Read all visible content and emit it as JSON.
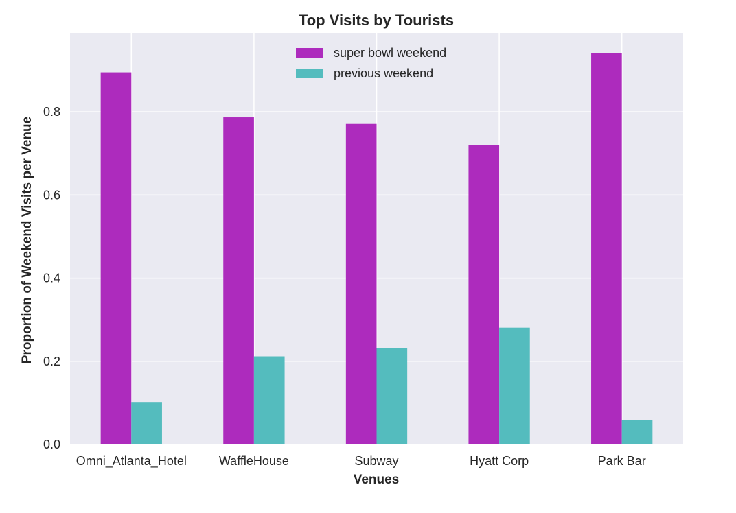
{
  "chart_data": {
    "type": "bar",
    "title": "Top Visits by Tourists",
    "xlabel": "Venues",
    "ylabel": "Proportion of Weekend Visits per Venue",
    "categories": [
      "Omni_Atlanta_Hotel",
      "WaffleHouse",
      "Subway",
      "Hyatt Corp",
      "Park Bar"
    ],
    "series": [
      {
        "name": "super bowl weekend",
        "color": "#ad2bbd",
        "values": [
          0.895,
          0.787,
          0.771,
          0.72,
          0.942
        ]
      },
      {
        "name": "previous weekend",
        "color": "#54bcbe",
        "values": [
          0.102,
          0.212,
          0.231,
          0.281,
          0.059
        ]
      }
    ],
    "ylim": [
      0,
      0.99
    ],
    "yticks": [
      0.0,
      0.2,
      0.4,
      0.6,
      0.8
    ],
    "ytick_labels": [
      "0.0",
      "0.2",
      "0.4",
      "0.6",
      "0.8"
    ],
    "grid": true,
    "legend_position": "top-center",
    "background_color": "#eaeaf2"
  }
}
